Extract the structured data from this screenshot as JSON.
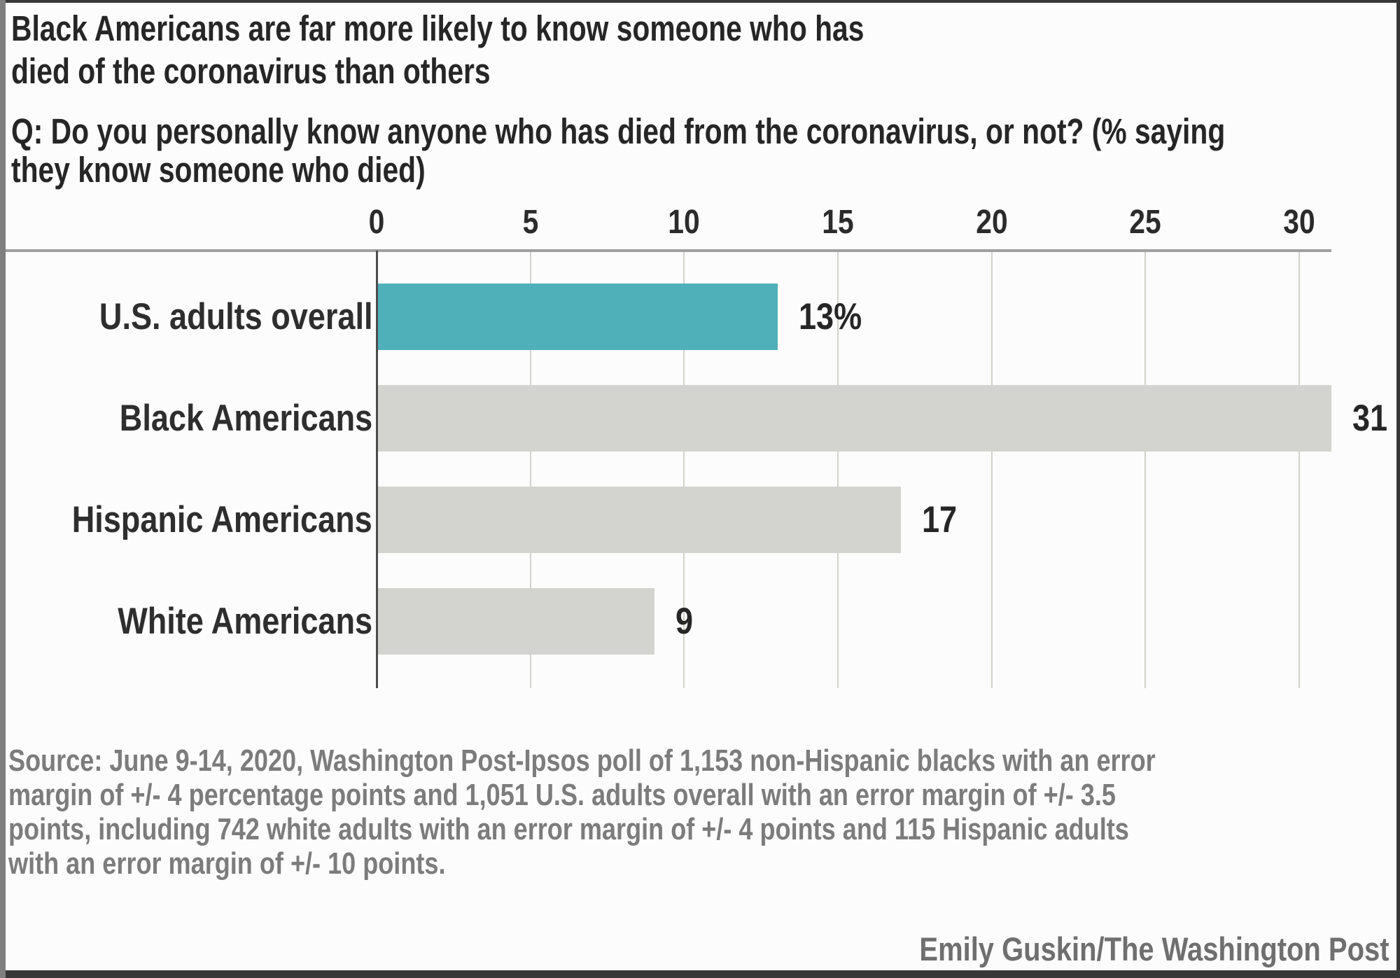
{
  "title_lines": [
    "Black Americans are far more likely to know someone who has",
    "died of the coronavirus than others"
  ],
  "question_lines": [
    "Q: Do you personally know anyone who has died from the coronavirus, or not? (% saying",
    "they know someone who died)"
  ],
  "chart_data": {
    "type": "bar",
    "orientation": "horizontal",
    "title": "Black Americans are far more likely to know someone who has died of the coronavirus than others",
    "subtitle": "Q: Do you personally know anyone who has died from the coronavirus, or not? (% saying they know someone who died)",
    "categories": [
      "U.S. adults overall",
      "Black Americans",
      "Hispanic Americans",
      "White Americans"
    ],
    "values": [
      13,
      31,
      17,
      9
    ],
    "value_labels": [
      "13%",
      "31",
      "17",
      "9"
    ],
    "axis_ticks": [
      0,
      5,
      10,
      15,
      20,
      25,
      30
    ],
    "xlim": [
      0,
      31
    ],
    "xlabel": "",
    "ylabel": "",
    "grid": true,
    "legend_position": "none",
    "bar_colors": [
      "#4fb0ba",
      "#d3d3cf",
      "#d3d3cf",
      "#d3d3cf"
    ],
    "highlight_color": "#4fb0ba",
    "default_bar_color": "#d3d3cf"
  },
  "source": "Source: June 9-14, 2020, Washington Post-Ipsos poll of 1,153 non-Hispanic blacks with an error margin of +/- 4 percentage points and 1,051 U.S. adults overall with an error margin of +/- 3.5 points, including 742 white adults with an error margin of +/- 4 points and 115 Hispanic adults with an error margin of +/- 10 points.",
  "source_lines": [
    "Source: June 9-14, 2020, Washington Post-Ipsos poll of 1,153 non-Hispanic blacks with an error",
    "margin of +/- 4 percentage points and 1,051 U.S. adults overall with an error margin of +/- 3.5",
    "points, including 742 white adults with an error margin of +/- 4 points and 115 Hispanic adults",
    "with an error margin of +/- 10 points."
  ],
  "credit": "Emily Guskin/The Washington Post",
  "colors": {
    "accent_teal": "#4fb0ba",
    "bar_gray": "#d3d3cf",
    "text_dark": "#262626",
    "text_gray": "#7c7c7c",
    "gridline": "#d2d2cc",
    "zero_axis_line": "#4c4c4c",
    "separator_line": "#9f9f9f",
    "frame_border": "#373737"
  }
}
